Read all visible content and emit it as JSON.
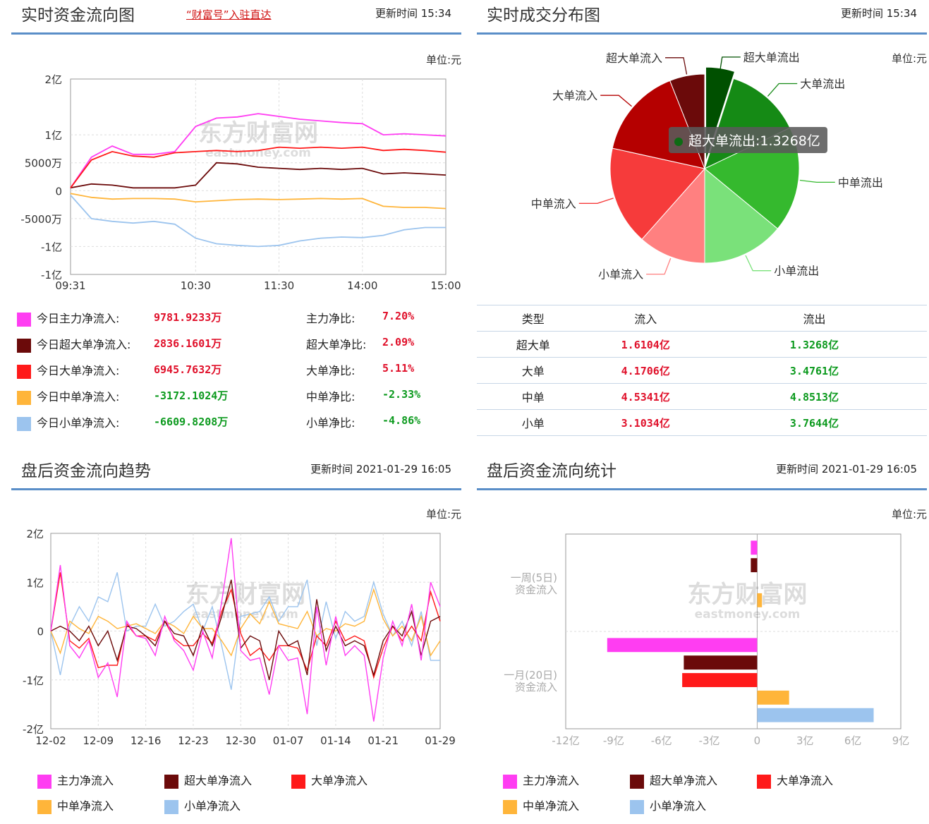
{
  "p1": {
    "title": "实时资金流向图",
    "link": "“财富号”入驻直达",
    "update": "更新时间 15:34",
    "unit": "单位:元",
    "watermark_cn": "东方财富网",
    "watermark_en": "eastmoney.com",
    "yticks": [
      "2亿",
      "1亿",
      "5000万",
      "0",
      "-5000万",
      "-1亿",
      "-1亿"
    ],
    "xticks": [
      "09:31",
      "10:30",
      "11:30",
      "14:00",
      "15:00"
    ],
    "stats": [
      {
        "name": "今日主力净流入:",
        "value": "9781.9233万",
        "ratio_label": "主力净比:",
        "ratio": "7.20%",
        "color": "#ff3df2",
        "sign": "pos"
      },
      {
        "name": "今日超大单净流入:",
        "value": "2836.1601万",
        "ratio_label": "超大单净比:",
        "ratio": "2.09%",
        "color": "#6b0a0a",
        "sign": "pos"
      },
      {
        "name": "今日大单净流入:",
        "value": "6945.7632万",
        "ratio_label": "大单净比:",
        "ratio": "5.11%",
        "color": "#ff1a1a",
        "sign": "pos"
      },
      {
        "name": "今日中单净流入:",
        "value": "-3172.1024万",
        "ratio_label": "中单净比:",
        "ratio": "-2.33%",
        "color": "#ffb53a",
        "sign": "neg"
      },
      {
        "name": "今日小单净流入:",
        "value": "-6609.8208万",
        "ratio_label": "小单净比:",
        "ratio": "-4.86%",
        "color": "#9cc4ee",
        "sign": "neg"
      }
    ]
  },
  "p2": {
    "title": "实时成交分布图",
    "update": "更新时间 15:34",
    "unit": "单位:元",
    "tooltip": "超大单流出:1.3268亿",
    "table_header": [
      "类型",
      "流入",
      "流出"
    ],
    "table_rows": [
      {
        "type": "超大单",
        "in": "1.6104亿",
        "out": "1.3268亿"
      },
      {
        "type": "大单",
        "in": "4.1706亿",
        "out": "3.4761亿"
      },
      {
        "type": "中单",
        "in": "4.5341亿",
        "out": "4.8513亿"
      },
      {
        "type": "小单",
        "in": "3.1034亿",
        "out": "3.7644亿"
      }
    ]
  },
  "p3": {
    "title": "盘后资金流向趋势",
    "update": "更新时间 2021-01-29 16:05",
    "unit": "单位:元",
    "watermark_cn": "东方财富网",
    "watermark_en": "eastmoney.com",
    "yticks": [
      "2亿",
      "1亿",
      "0",
      "-1亿",
      "-2亿"
    ],
    "xticks": [
      "12-02",
      "12-09",
      "12-16",
      "12-23",
      "12-30",
      "01-07",
      "01-14",
      "01-21",
      "01-29"
    ],
    "legend": [
      {
        "label": "主力净流入",
        "color": "#ff3df2"
      },
      {
        "label": "超大单净流入",
        "color": "#6b0a0a"
      },
      {
        "label": "大单净流入",
        "color": "#ff1a1a"
      },
      {
        "label": "中单净流入",
        "color": "#ffb53a"
      },
      {
        "label": "小单净流入",
        "color": "#9cc4ee"
      }
    ]
  },
  "p4": {
    "title": "盘后资金流向统计",
    "update": "更新时间 2021-01-29 16:05",
    "unit": "单位:元",
    "watermark_cn": "东方财富网",
    "watermark_en": "eastmoney.com",
    "cat1": [
      "一周(5日)",
      "资金流入"
    ],
    "cat2": [
      "一月(20日)",
      "资金流入"
    ],
    "xticks": [
      "-12亿",
      "-9亿",
      "-6亿",
      "-3亿",
      "0",
      "3亿",
      "6亿",
      "9亿"
    ],
    "legend": [
      {
        "label": "主力净流入",
        "color": "#ff3df2"
      },
      {
        "label": "超大单净流入",
        "color": "#6b0a0a"
      },
      {
        "label": "大单净流入",
        "color": "#ff1a1a"
      },
      {
        "label": "中单净流入",
        "color": "#ffb53a"
      },
      {
        "label": "小单净流入",
        "color": "#9cc4ee"
      }
    ]
  },
  "chart_data": [
    {
      "type": "line",
      "title": "实时资金流向图",
      "x": [
        "09:31",
        "09:40",
        "09:50",
        "10:00",
        "10:10",
        "10:20",
        "10:30",
        "10:45",
        "11:00",
        "11:15",
        "11:30",
        "13:10",
        "13:30",
        "13:50",
        "14:00",
        "14:15",
        "14:30",
        "14:45",
        "15:00"
      ],
      "ylim": [
        -1.5,
        2
      ],
      "y_unit": "亿",
      "series": [
        {
          "name": "今日主力净流入",
          "color": "#ff3df2",
          "values": [
            0.05,
            0.6,
            0.8,
            0.65,
            0.65,
            0.7,
            1.15,
            1.3,
            1.32,
            1.38,
            1.33,
            1.28,
            1.25,
            1.22,
            1.2,
            1.0,
            1.02,
            1.0,
            0.98
          ]
        },
        {
          "name": "今日超大单净流入",
          "color": "#6b0a0a",
          "values": [
            0.05,
            0.12,
            0.1,
            0.05,
            0.05,
            0.05,
            0.1,
            0.5,
            0.48,
            0.42,
            0.4,
            0.38,
            0.4,
            0.38,
            0.4,
            0.3,
            0.32,
            0.3,
            0.28
          ]
        },
        {
          "name": "今日大单净流入",
          "color": "#ff1a1a",
          "values": [
            0.05,
            0.55,
            0.7,
            0.62,
            0.6,
            0.68,
            0.7,
            0.72,
            0.7,
            0.72,
            0.78,
            0.76,
            0.78,
            0.76,
            0.78,
            0.72,
            0.74,
            0.72,
            0.69
          ]
        },
        {
          "name": "今日中单净流入",
          "color": "#ffb53a",
          "values": [
            -0.05,
            -0.12,
            -0.15,
            -0.14,
            -0.14,
            -0.15,
            -0.2,
            -0.18,
            -0.16,
            -0.15,
            -0.16,
            -0.15,
            -0.14,
            -0.15,
            -0.14,
            -0.28,
            -0.3,
            -0.3,
            -0.32
          ]
        },
        {
          "name": "今日小单净流入",
          "color": "#9cc4ee",
          "values": [
            -0.08,
            -0.5,
            -0.55,
            -0.58,
            -0.55,
            -0.6,
            -0.85,
            -0.95,
            -0.98,
            -1.0,
            -0.98,
            -0.9,
            -0.85,
            -0.83,
            -0.84,
            -0.8,
            -0.7,
            -0.66,
            -0.66
          ]
        }
      ]
    },
    {
      "type": "pie",
      "title": "实时成交分布图",
      "unit": "亿",
      "slices": [
        {
          "label": "超大单流出",
          "value": 1.3268,
          "color": "#005000"
        },
        {
          "label": "大单流出",
          "value": 3.4761,
          "color": "#158a15"
        },
        {
          "label": "中单流出",
          "value": 4.8513,
          "color": "#35b92e"
        },
        {
          "label": "小单流出",
          "value": 3.7644,
          "color": "#7ae17a"
        },
        {
          "label": "小单流入",
          "value": 3.1034,
          "color": "#ff8080"
        },
        {
          "label": "中单流入",
          "value": 4.5341,
          "color": "#f63b3b"
        },
        {
          "label": "大单流入",
          "value": 4.1706,
          "color": "#b50000"
        },
        {
          "label": "超大单流入",
          "value": 1.6104,
          "color": "#6b0a0a"
        }
      ]
    },
    {
      "type": "line",
      "title": "盘后资金流向趋势",
      "x": [
        "12-02",
        "12-03",
        "12-04",
        "12-07",
        "12-08",
        "12-09",
        "12-10",
        "12-11",
        "12-14",
        "12-15",
        "12-16",
        "12-17",
        "12-18",
        "12-21",
        "12-22",
        "12-23",
        "12-24",
        "12-25",
        "12-28",
        "12-29",
        "12-30",
        "12-31",
        "01-04",
        "01-05",
        "01-06",
        "01-07",
        "01-08",
        "01-11",
        "01-12",
        "01-13",
        "01-14",
        "01-15",
        "01-18",
        "01-19",
        "01-20",
        "01-21",
        "01-22",
        "01-25",
        "01-26",
        "01-27",
        "01-28",
        "01-29"
      ],
      "ylim": [
        -2,
        2
      ],
      "y_unit": "亿",
      "series": [
        {
          "name": "主力净流入",
          "color": "#ff3df2",
          "values": [
            0.0,
            1.35,
            -0.3,
            -0.55,
            -0.2,
            -0.95,
            -0.65,
            -1.35,
            0.2,
            -0.1,
            -0.15,
            -0.5,
            0.3,
            -0.2,
            -0.4,
            -0.8,
            0.0,
            -0.55,
            0.6,
            1.9,
            -0.4,
            -0.6,
            -0.55,
            -1.3,
            -0.3,
            -0.6,
            -0.55,
            -1.7,
            0.5,
            -0.7,
            0.3,
            -0.5,
            -0.3,
            -0.5,
            -1.85,
            -0.55,
            0.2,
            -0.3,
            0.55,
            -0.6,
            1.0,
            0.5
          ]
        },
        {
          "name": "超大单净流入",
          "color": "#6b0a0a",
          "values": [
            0.0,
            0.1,
            0.0,
            -0.2,
            0.1,
            -0.3,
            0.0,
            -0.6,
            0.1,
            0.05,
            -0.1,
            -0.3,
            0.2,
            -0.05,
            -0.1,
            -0.5,
            0.1,
            -0.3,
            0.3,
            1.05,
            -0.35,
            -0.1,
            -0.2,
            -1.0,
            0.0,
            -0.3,
            -0.2,
            -0.9,
            0.65,
            -0.4,
            0.1,
            -0.3,
            -0.2,
            -0.3,
            -0.9,
            -0.2,
            0.1,
            -0.1,
            0.4,
            -0.5,
            0.2,
            0.3
          ]
        },
        {
          "name": "大单净流入",
          "color": "#ff1a1a",
          "values": [
            0.0,
            1.2,
            -0.2,
            -0.35,
            -0.15,
            -0.75,
            -0.7,
            -0.7,
            0.15,
            -0.1,
            -0.1,
            -0.2,
            0.2,
            -0.15,
            -0.3,
            -0.3,
            -0.05,
            -0.25,
            0.4,
            0.85,
            -0.05,
            -0.5,
            -0.35,
            -0.6,
            -0.3,
            -0.3,
            -0.35,
            -0.8,
            -0.1,
            -0.3,
            0.2,
            -0.2,
            -0.1,
            -0.2,
            -0.95,
            -0.35,
            0.1,
            -0.2,
            0.1,
            -0.2,
            0.8,
            0.2
          ]
        },
        {
          "name": "中单净流入",
          "color": "#ffb53a",
          "values": [
            0.0,
            -0.45,
            0.2,
            0.05,
            -0.05,
            0.3,
            0.2,
            0.05,
            0.1,
            0.15,
            0.05,
            -0.05,
            0.2,
            0.1,
            -0.05,
            0.3,
            0.05,
            0.05,
            -0.2,
            -0.5,
            0.05,
            0.35,
            0.15,
            0.6,
            0.15,
            0.1,
            0.05,
            0.4,
            -0.1,
            0.05,
            0.0,
            0.15,
            0.1,
            0.2,
            0.85,
            0.25,
            -0.1,
            0.1,
            -0.2,
            0.3,
            -0.5,
            -0.2
          ]
        },
        {
          "name": "小单净流入",
          "color": "#9cc4ee",
          "values": [
            0.0,
            -0.9,
            0.1,
            0.5,
            0.2,
            0.7,
            0.6,
            1.2,
            0.0,
            0.1,
            0.1,
            0.55,
            0.1,
            0.2,
            0.4,
            0.55,
            0.0,
            0.5,
            -0.3,
            -1.2,
            0.3,
            0.35,
            0.4,
            0.7,
            0.2,
            0.5,
            0.5,
            1.05,
            -0.3,
            0.6,
            -0.15,
            0.4,
            0.2,
            0.3,
            1.0,
            0.35,
            -0.1,
            0.2,
            -0.3,
            0.4,
            -0.6,
            -0.6
          ]
        }
      ]
    },
    {
      "type": "bar",
      "title": "盘后资金流向统计",
      "orientation": "horizontal",
      "xlim": [
        -12,
        9
      ],
      "x_unit": "亿",
      "categories": [
        "一周(5日)资金流入",
        "一月(20日)资金流入"
      ],
      "series": [
        {
          "name": "主力净流入",
          "color": "#ff3df2",
          "values": [
            -0.4,
            -9.4
          ]
        },
        {
          "name": "超大单净流入",
          "color": "#6b0a0a",
          "values": [
            -0.4,
            -4.6
          ]
        },
        {
          "name": "大单净流入",
          "color": "#ff1a1a",
          "values": [
            0.0,
            -4.7
          ]
        },
        {
          "name": "中单净流入",
          "color": "#ffb53a",
          "values": [
            0.3,
            2.0
          ]
        },
        {
          "name": "小单净流入",
          "color": "#9cc4ee",
          "values": [
            0.0,
            7.3
          ]
        }
      ]
    }
  ]
}
